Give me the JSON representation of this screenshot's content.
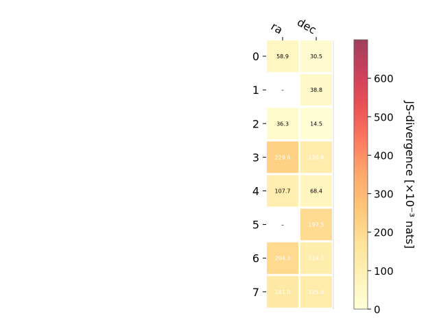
{
  "chart_data": {
    "type": "heatmap",
    "columns": [
      "ra",
      "dec"
    ],
    "rows": [
      "0",
      "1",
      "2",
      "3",
      "4",
      "5",
      "6",
      "7"
    ],
    "values": [
      [
        58.9,
        30.5
      ],
      [
        null,
        38.8
      ],
      [
        36.3,
        14.5
      ],
      [
        229.6,
        120.8
      ],
      [
        107.7,
        68.4
      ],
      [
        null,
        197.5
      ],
      [
        204.3,
        114.1
      ],
      [
        141.0,
        125.4
      ]
    ],
    "cell_text": [
      [
        "58.9",
        "30.5"
      ],
      [
        "–",
        "38.8"
      ],
      [
        "36.3",
        "14.5"
      ],
      [
        "229.6",
        "120.8"
      ],
      [
        "107.7",
        "68.4"
      ],
      [
        "–",
        "197.5"
      ],
      [
        "204.3",
        "114.1"
      ],
      [
        "141.0",
        "125.4"
      ]
    ],
    "colorbar": {
      "label": "JS-divergence [×10⁻³ nats]",
      "colormap": "YlOrRd",
      "range": [
        0,
        700
      ],
      "ticks": [
        "0",
        "100",
        "200",
        "300",
        "400",
        "500",
        "600"
      ],
      "tick_values": [
        0,
        100,
        200,
        300,
        400,
        500,
        600
      ]
    },
    "colors": {
      "missing_text": "#000000",
      "light_text": "#ffffff",
      "dark_text": "#000000"
    }
  }
}
